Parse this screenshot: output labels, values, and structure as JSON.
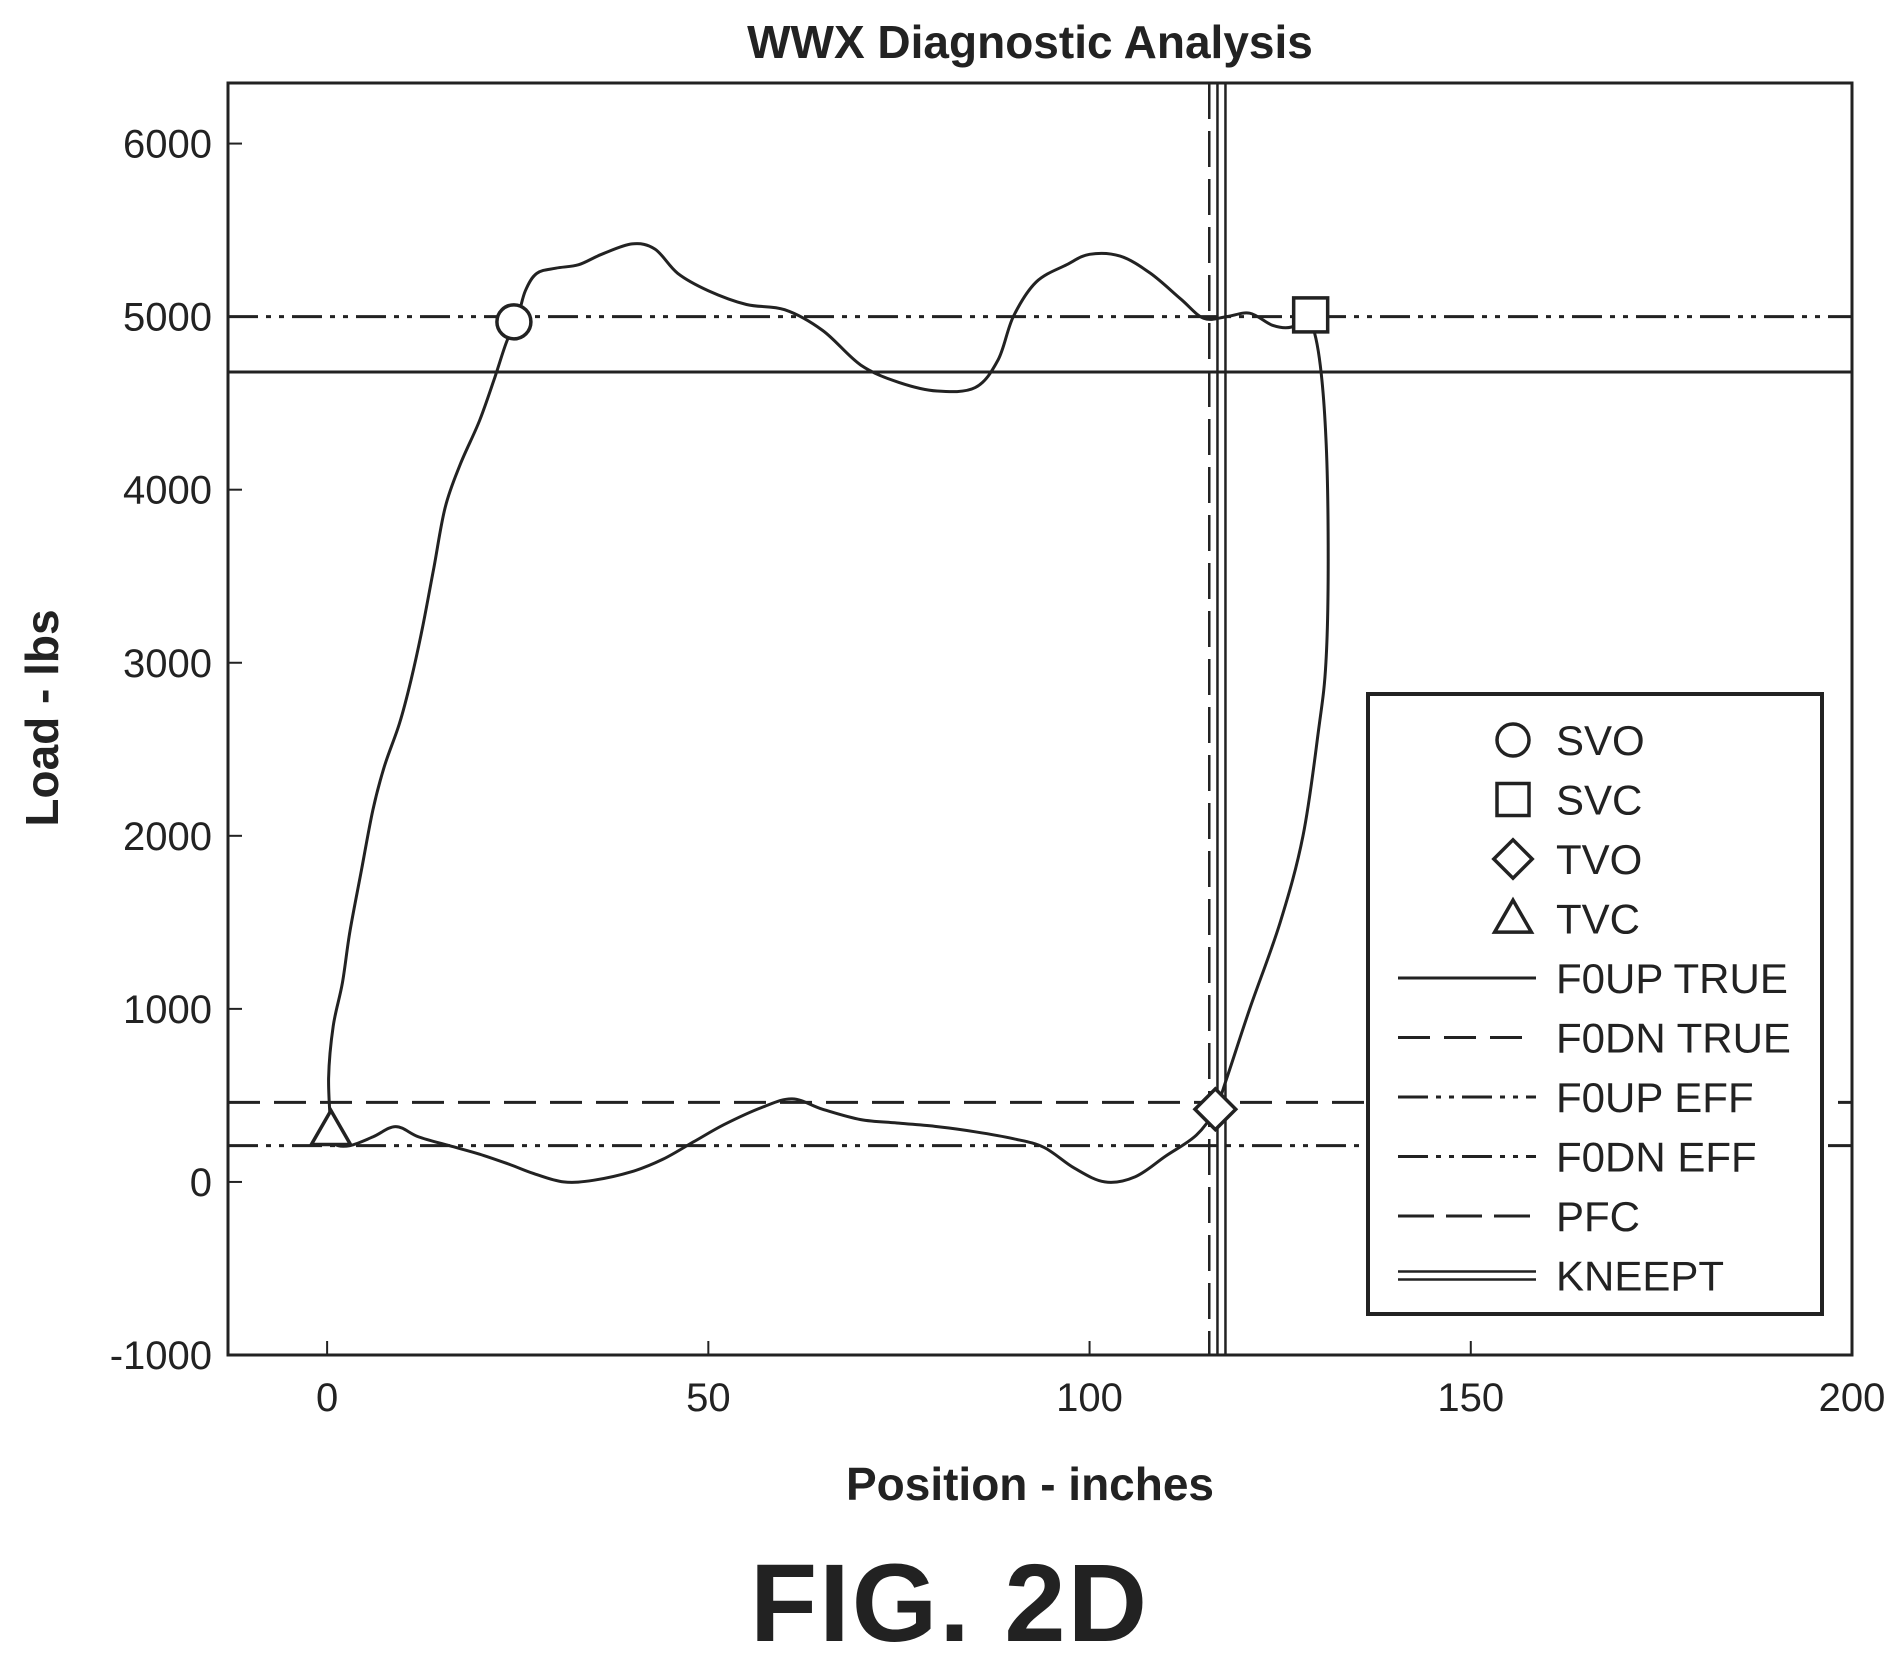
{
  "chart_data": {
    "type": "line",
    "title": "WWX Diagnostic Analysis",
    "xlabel": "Position - inches",
    "ylabel": "Load - lbs",
    "xlim": [
      -13,
      200
    ],
    "ylim": [
      -1000,
      6350
    ],
    "xticks": [
      0,
      50,
      100,
      150,
      200
    ],
    "yticks": [
      -1000,
      0,
      1000,
      2000,
      3000,
      4000,
      5000,
      6000
    ],
    "grid": false,
    "legend_position": "bottom-right",
    "curve": {
      "name": "",
      "points": [
        [
          0.5,
          300
        ],
        [
          0.2,
          600
        ],
        [
          0.8,
          900
        ],
        [
          2,
          1150
        ],
        [
          3,
          1450
        ],
        [
          4.5,
          1800
        ],
        [
          6,
          2150
        ],
        [
          7.5,
          2400
        ],
        [
          9.5,
          2650
        ],
        [
          11,
          2900
        ],
        [
          12.5,
          3200
        ],
        [
          14,
          3550
        ],
        [
          15.5,
          3900
        ],
        [
          17.5,
          4150
        ],
        [
          20,
          4400
        ],
        [
          22,
          4650
        ],
        [
          23.5,
          4850
        ],
        [
          25,
          5000
        ],
        [
          26,
          5150
        ],
        [
          27.5,
          5250
        ],
        [
          30,
          5280
        ],
        [
          33,
          5300
        ],
        [
          36,
          5360
        ],
        [
          40,
          5420
        ],
        [
          43,
          5390
        ],
        [
          46,
          5250
        ],
        [
          50,
          5150
        ],
        [
          55,
          5070
        ],
        [
          60,
          5040
        ],
        [
          65,
          4920
        ],
        [
          70,
          4720
        ],
        [
          75,
          4620
        ],
        [
          80,
          4570
        ],
        [
          85,
          4590
        ],
        [
          88,
          4750
        ],
        [
          90,
          5000
        ],
        [
          93,
          5200
        ],
        [
          97,
          5300
        ],
        [
          100,
          5360
        ],
        [
          104,
          5350
        ],
        [
          108,
          5250
        ],
        [
          112,
          5100
        ],
        [
          115,
          4990
        ],
        [
          118,
          5000
        ],
        [
          121,
          5020
        ],
        [
          124,
          4950
        ],
        [
          126.5,
          4940
        ],
        [
          128.5,
          5000
        ],
        [
          130,
          4800
        ],
        [
          131,
          4300
        ],
        [
          131.3,
          3600
        ],
        [
          131,
          3000
        ],
        [
          130,
          2600
        ],
        [
          128,
          2000
        ],
        [
          125,
          1500
        ],
        [
          121,
          1000
        ],
        [
          118,
          600
        ],
        [
          116.5,
          420
        ],
        [
          114,
          270
        ],
        [
          110,
          150
        ],
        [
          106,
          30
        ],
        [
          102,
          0
        ],
        [
          98,
          80
        ],
        [
          94,
          200
        ],
        [
          90,
          250
        ],
        [
          85,
          290
        ],
        [
          80,
          320
        ],
        [
          75,
          340
        ],
        [
          70,
          360
        ],
        [
          65,
          420
        ],
        [
          61,
          480
        ],
        [
          57,
          430
        ],
        [
          52,
          330
        ],
        [
          48,
          230
        ],
        [
          44,
          130
        ],
        [
          40,
          60
        ],
        [
          35,
          10
        ],
        [
          31,
          0
        ],
        [
          27,
          50
        ],
        [
          24,
          100
        ],
        [
          20,
          160
        ],
        [
          16,
          210
        ],
        [
          12,
          260
        ],
        [
          9,
          320
        ],
        [
          6,
          260
        ],
        [
          3,
          210
        ],
        [
          1,
          220
        ],
        [
          0.5,
          300
        ]
      ]
    },
    "markers": [
      {
        "name": "SVO",
        "shape": "circle",
        "x": 24.5,
        "y": 4970
      },
      {
        "name": "SVC",
        "shape": "square",
        "x": 129,
        "y": 5010
      },
      {
        "name": "TVO",
        "shape": "diamond",
        "x": 116.5,
        "y": 420
      },
      {
        "name": "TVC",
        "shape": "triangle",
        "x": 0.5,
        "y": 300
      }
    ],
    "hlines": [
      {
        "name": "F0UP TRUE",
        "y": 4680,
        "style": "solid"
      },
      {
        "name": "F0DN TRUE",
        "y": 460,
        "style": "dashed"
      },
      {
        "name": "F0UP EFF",
        "y": 5000,
        "style": "dash-dot-dot"
      },
      {
        "name": "F0DN EFF",
        "y": 210,
        "style": "dash-dot-dot"
      }
    ],
    "vlines": [
      {
        "name": "PFC",
        "x": 115.7,
        "style": "long-dash"
      },
      {
        "name": "KNEEPT",
        "x": 117.3,
        "style": "double"
      }
    ],
    "legend": [
      "SVO",
      "SVC",
      "TVO",
      "TVC",
      "F0UP TRUE",
      "F0DN TRUE",
      "F0UP EFF",
      "F0DN EFF",
      "PFC",
      "KNEEPT"
    ]
  },
  "figure_label": "FIG. 2D"
}
